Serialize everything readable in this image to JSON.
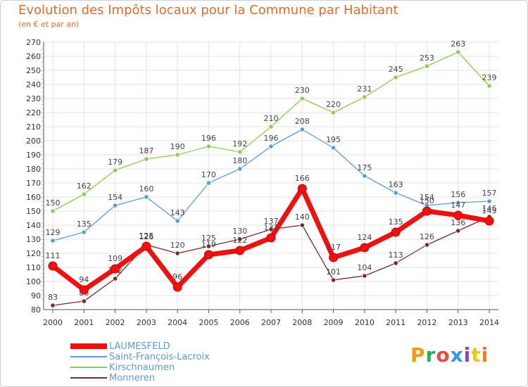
{
  "header": {
    "title": "Evolution des Impôts locaux pour la Commune par Habitant",
    "subtitle": "(en € et par an)"
  },
  "logo": {
    "text": "Proxiti",
    "colors": [
      "#f39c12",
      "#27ae60",
      "#e74c3c",
      "#3498db",
      "#8e44ad",
      "#f1c40f",
      "#e67e22"
    ]
  },
  "chart_data": {
    "type": "line",
    "x": [
      "2000",
      "2001",
      "2002",
      "2003",
      "2004",
      "2005",
      "2006",
      "2007",
      "2008",
      "2009",
      "2010",
      "2011",
      "2012",
      "2013",
      "2014"
    ],
    "ylim": [
      80,
      270
    ],
    "yticks": [
      80,
      90,
      100,
      110,
      120,
      130,
      140,
      150,
      160,
      170,
      180,
      190,
      200,
      210,
      220,
      230,
      240,
      250,
      260,
      270
    ],
    "grid": true,
    "legend_position": "bottom-left",
    "series": [
      {
        "name": "Kirschnaumen",
        "color": "#8ccc52",
        "values": [
          150,
          162,
          179,
          187,
          190,
          196,
          192,
          210,
          230,
          220,
          231,
          245,
          253,
          263,
          239
        ],
        "labels": [
          "150",
          "162",
          "179",
          "187",
          "190",
          "196",
          "192",
          "210",
          "230",
          "220",
          "231",
          "245",
          "253",
          "263",
          "239"
        ]
      },
      {
        "name": "Saint-François-Lacroix",
        "color": "#5b9bd5",
        "values": [
          129,
          135,
          154,
          160,
          143,
          170,
          180,
          196,
          208,
          195,
          175,
          163,
          154,
          156,
          157
        ],
        "labels": [
          "129",
          "135",
          "154",
          "160",
          "143",
          "170",
          "180",
          "196",
          "208",
          "195",
          "175",
          "163",
          "154",
          "156",
          "157"
        ]
      },
      {
        "name": "Monneren",
        "color": "#7a2a2a",
        "values": [
          83,
          86,
          102,
          126,
          120,
          125,
          130,
          137,
          140,
          101,
          104,
          113,
          126,
          136,
          146
        ],
        "labels": [
          "83",
          "86",
          "102",
          "126",
          "120",
          "125",
          "130",
          "137",
          "140",
          "101",
          "104",
          "113",
          "126",
          "136",
          "146"
        ]
      },
      {
        "name": "LAUMESFELD",
        "color": "#ee1111",
        "values": [
          111,
          94,
          109,
          125,
          96,
          119,
          122,
          131,
          166,
          117,
          124,
          135,
          150,
          147,
          143
        ],
        "labels": [
          "111",
          "94",
          "109",
          "125",
          "96",
          "119",
          "122",
          "131",
          "166",
          "117",
          "124",
          "135",
          "150",
          "147",
          "143"
        ]
      }
    ],
    "legend": [
      "LAUMESFELD",
      "Saint-François-Lacroix",
      "Kirschnaumen",
      "Monneren"
    ]
  }
}
